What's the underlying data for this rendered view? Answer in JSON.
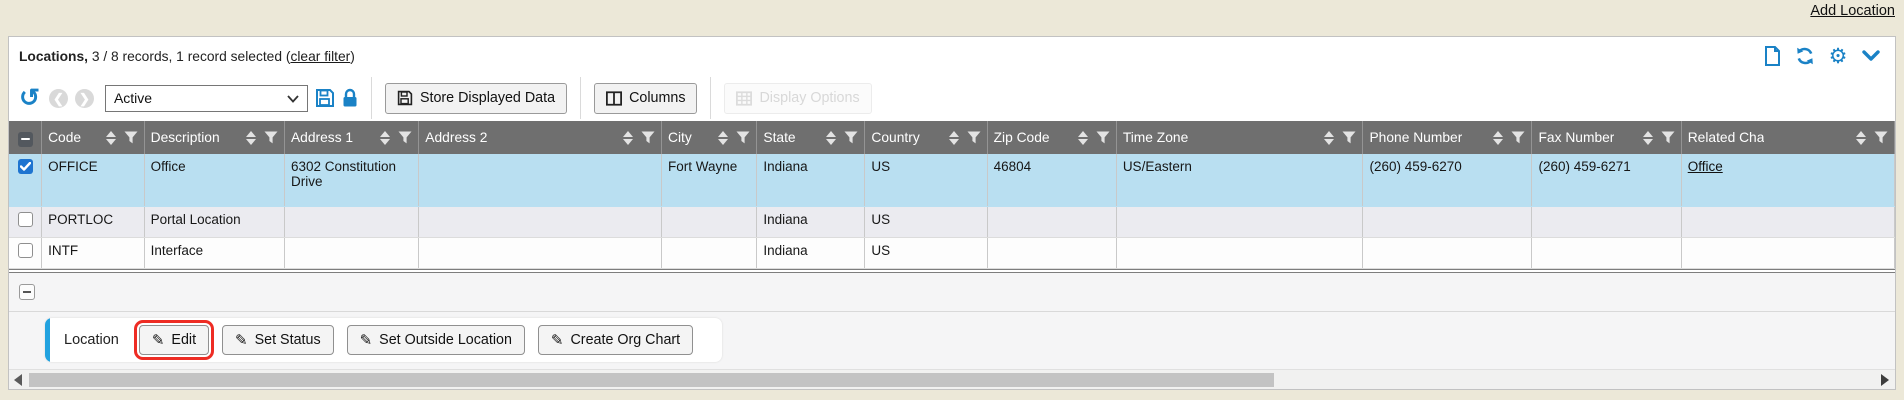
{
  "page": {
    "add_location_link": "Add Location"
  },
  "header": {
    "title_bold": "Locations,",
    "records_summary": " 3 / 8 records, 1 record selected (",
    "clear_filter_link": "clear filter",
    "summary_suffix": ")",
    "icons": [
      "new-document-icon",
      "refresh-icon",
      "gear-icon",
      "chevron-down-icon"
    ]
  },
  "toolbar": {
    "undo_icon": "undo-icon",
    "nav_back_icon": "chevron-left-icon",
    "nav_forward_icon": "chevron-right-icon",
    "status_filter_value": "Active",
    "save_icon": "floppy-disk-icon",
    "lock_icon": "lock-icon",
    "store_displayed_data_label": "Store Displayed Data",
    "columns_label": "Columns",
    "display_options_label": "Display Options"
  },
  "table": {
    "columns": [
      "Code",
      "Description",
      "Address 1",
      "Address 2",
      "City",
      "State",
      "Country",
      "Zip Code",
      "Time Zone",
      "Phone Number",
      "Fax Number",
      "Related Cha"
    ],
    "rows": [
      {
        "selected": true,
        "cells": [
          "OFFICE",
          "Office",
          "6302 Constitution Drive",
          "",
          "Fort Wayne",
          "Indiana",
          "US",
          "46804",
          "US/Eastern",
          "(260) 459-6270",
          "(260) 459-6271"
        ],
        "related_link": "Office"
      },
      {
        "selected": false,
        "cells": [
          "PORTLOC",
          "Portal Location",
          "",
          "",
          "",
          "Indiana",
          "US",
          "",
          "",
          "",
          ""
        ],
        "related_link": ""
      },
      {
        "selected": false,
        "cells": [
          "INTF",
          "Interface",
          "",
          "",
          "",
          "Indiana",
          "US",
          "",
          "",
          "",
          ""
        ],
        "related_link": ""
      }
    ]
  },
  "footer": {
    "group_label": "Location",
    "actions": [
      {
        "label": "Edit",
        "highlighted": true
      },
      {
        "label": "Set Status",
        "highlighted": false
      },
      {
        "label": "Set Outside Location",
        "highlighted": false
      },
      {
        "label": "Create Org Chart",
        "highlighted": false
      }
    ]
  },
  "colors": {
    "accent_blue": "#1a82c6",
    "action_accent_blue": "#22a2df",
    "selected_row": "#b9dff1",
    "highlight_red": "#ee2c24",
    "header_gray": "#6f6f6f",
    "page_background": "#ece8d8"
  }
}
